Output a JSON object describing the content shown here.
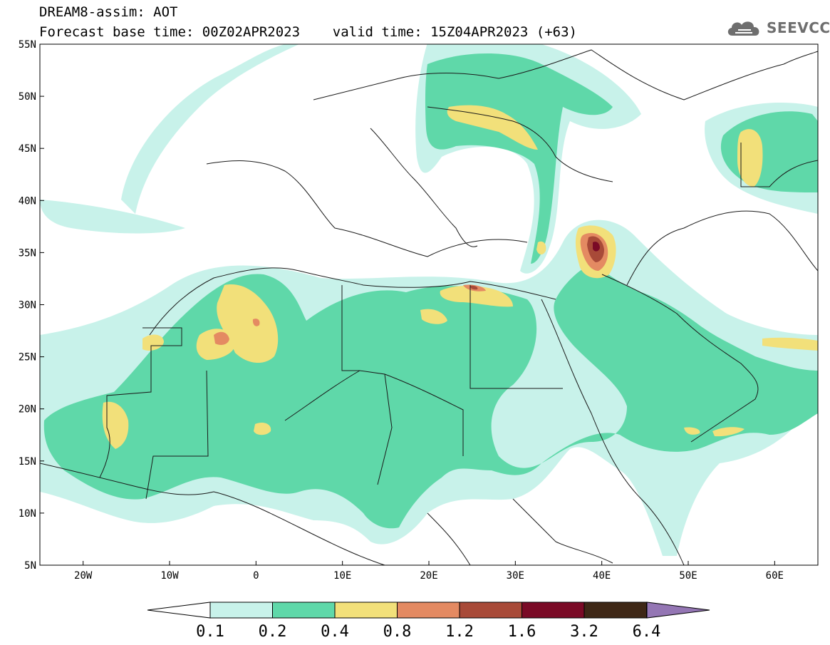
{
  "header": {
    "title": "DREAM8-assim: AOT",
    "forecast_line": "Forecast base time: 00Z02APR2023    valid time: 15Z04APR2023 (+63)"
  },
  "logo": {
    "text": "SEEVCCC",
    "icon": "cloud-icon",
    "color": "#6e6e6e"
  },
  "map": {
    "lon_range": [
      -25,
      65
    ],
    "lat_range": [
      5,
      55
    ],
    "lat_ticks": [
      {
        "value": 55,
        "label": "55N"
      },
      {
        "value": 50,
        "label": "50N"
      },
      {
        "value": 45,
        "label": "45N"
      },
      {
        "value": 40,
        "label": "40N"
      },
      {
        "value": 35,
        "label": "35N"
      },
      {
        "value": 30,
        "label": "30N"
      },
      {
        "value": 25,
        "label": "25N"
      },
      {
        "value": 20,
        "label": "20N"
      },
      {
        "value": 15,
        "label": "15N"
      },
      {
        "value": 10,
        "label": "10N"
      },
      {
        "value": 5,
        "label": "5N"
      }
    ],
    "lon_ticks": [
      {
        "value": -20,
        "label": "20W"
      },
      {
        "value": -10,
        "label": "10W"
      },
      {
        "value": 0,
        "label": "0"
      },
      {
        "value": 10,
        "label": "10E"
      },
      {
        "value": 20,
        "label": "20E"
      },
      {
        "value": 30,
        "label": "30E"
      },
      {
        "value": 40,
        "label": "40E"
      },
      {
        "value": 50,
        "label": "50E"
      },
      {
        "value": 60,
        "label": "60E"
      }
    ]
  },
  "colorbar": {
    "levels": [
      {
        "label": "0.1",
        "color": "#c8f2ea"
      },
      {
        "label": "0.2",
        "color": "#5fd8a9"
      },
      {
        "label": "0.4",
        "color": "#f2e07a"
      },
      {
        "label": "0.8",
        "color": "#e48a62"
      },
      {
        "label": "1.2",
        "color": "#a84a38"
      },
      {
        "label": "1.6",
        "color": "#7a0a26"
      },
      {
        "label": "3.2",
        "color": "#3e2716"
      },
      {
        "label": "6.4",
        "color": "#9476b4"
      }
    ],
    "under_color": "#ffffff",
    "over_color": "#9476b4"
  }
}
